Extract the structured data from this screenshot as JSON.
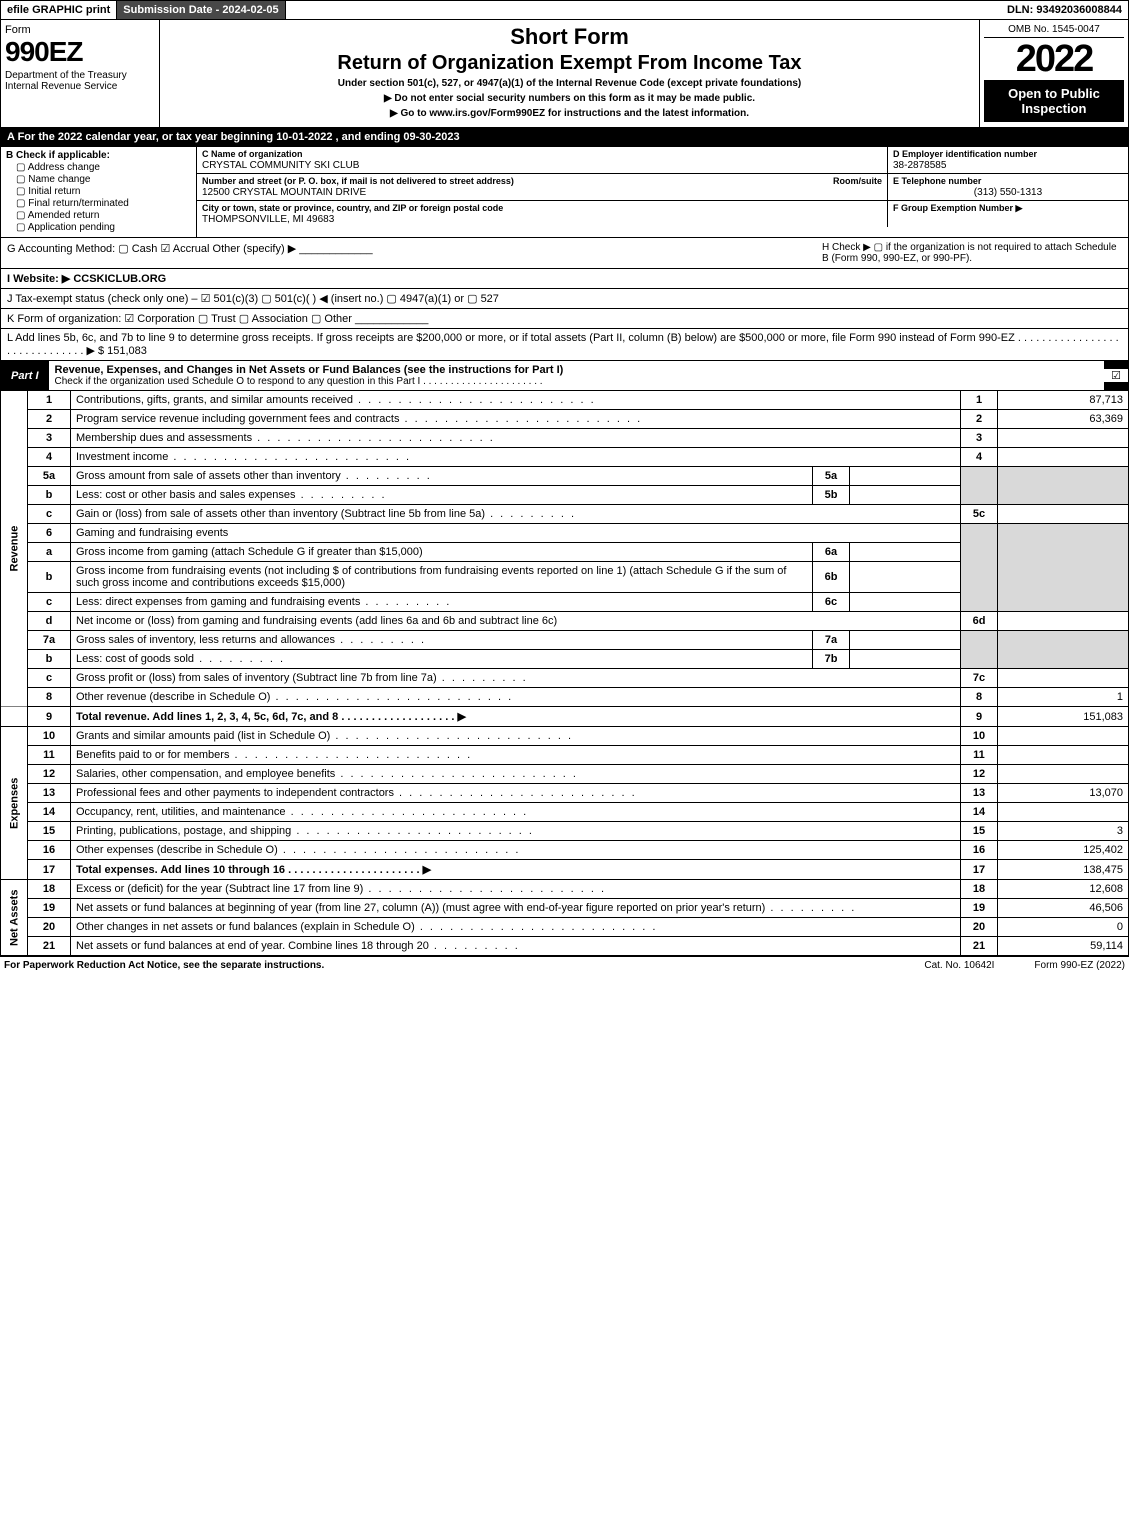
{
  "topbar": {
    "efile": "efile GRAPHIC print",
    "subdate_label": "Submission Date - 2024-02-05",
    "dln": "DLN: 93492036008844"
  },
  "header": {
    "form_label": "Form",
    "form_no": "990EZ",
    "dept": "Department of the Treasury\nInternal Revenue Service",
    "short": "Short Form",
    "title": "Return of Organization Exempt From Income Tax",
    "under": "Under section 501(c), 527, or 4947(a)(1) of the Internal Revenue Code (except private foundations)",
    "nossn": "▶ Do not enter social security numbers on this form as it may be made public.",
    "goto": "▶ Go to www.irs.gov/Form990EZ for instructions and the latest information.",
    "omb": "OMB No. 1545-0047",
    "year": "2022",
    "open": "Open to Public Inspection"
  },
  "secA": "A  For the 2022 calendar year, or tax year beginning 10-01-2022 , and ending 09-30-2023",
  "secB": {
    "hdr": "B  Check if applicable:",
    "opts": [
      "Address change",
      "Name change",
      "Initial return",
      "Final return/terminated",
      "Amended return",
      "Application pending"
    ]
  },
  "secC": {
    "c_lbl": "C Name of organization",
    "c_val": "CRYSTAL COMMUNITY SKI CLUB",
    "addr_lbl": "Number and street (or P. O. box, if mail is not delivered to street address)",
    "room_lbl": "Room/suite",
    "addr_val": "12500 CRYSTAL MOUNTAIN DRIVE",
    "city_lbl": "City or town, state or province, country, and ZIP or foreign postal code",
    "city_val": "THOMPSONVILLE, MI  49683"
  },
  "secD": {
    "lbl": "D Employer identification number",
    "val": "38-2878585"
  },
  "secE": {
    "lbl": "E Telephone number",
    "val": "(313) 550-1313"
  },
  "secF": {
    "lbl": "F Group Exemption Number  ▶"
  },
  "rowG": {
    "g": "G Accounting Method:  ▢ Cash  ☑ Accrual  Other (specify) ▶ ____________",
    "h": "H  Check ▶  ▢ if the organization is not required to attach Schedule B (Form 990, 990-EZ, or 990-PF)."
  },
  "rowI": "I Website: ▶ CCSKICLUB.ORG",
  "rowJ": "J Tax-exempt status (check only one) – ☑ 501(c)(3)  ▢ 501(c)(  ) ◀ (insert no.)  ▢ 4947(a)(1) or  ▢ 527",
  "rowK": "K Form of organization:  ☑ Corporation  ▢ Trust  ▢ Association  ▢ Other  ____________",
  "rowL": "L Add lines 5b, 6c, and 7b to line 9 to determine gross receipts. If gross receipts are $200,000 or more, or if total assets (Part II, column (B) below) are $500,000 or more, file Form 990 instead of Form 990-EZ  . . . . . . . . . . . . . . . . . . . . . . . . . . . . . .  ▶ $ 151,083",
  "part1": {
    "tag": "Part I",
    "title": "Revenue, Expenses, and Changes in Net Assets or Fund Balances (see the instructions for Part I)",
    "sub": "Check if the organization used Schedule O to respond to any question in this Part I . . . . . . . . . . . . . . . . . . . . . .",
    "chk": "☑"
  },
  "sides": {
    "rev": "Revenue",
    "exp": "Expenses",
    "net": "Net Assets"
  },
  "lines": {
    "l1": {
      "n": "1",
      "d": "Contributions, gifts, grants, and similar amounts received",
      "cn": "1",
      "cv": "87,713"
    },
    "l2": {
      "n": "2",
      "d": "Program service revenue including government fees and contracts",
      "cn": "2",
      "cv": "63,369"
    },
    "l3": {
      "n": "3",
      "d": "Membership dues and assessments",
      "cn": "3",
      "cv": ""
    },
    "l4": {
      "n": "4",
      "d": "Investment income",
      "cn": "4",
      "cv": ""
    },
    "l5a": {
      "n": "5a",
      "d": "Gross amount from sale of assets other than inventory",
      "bn": "5a",
      "bv": ""
    },
    "l5b": {
      "n": "b",
      "d": "Less: cost or other basis and sales expenses",
      "bn": "5b",
      "bv": ""
    },
    "l5c": {
      "n": "c",
      "d": "Gain or (loss) from sale of assets other than inventory (Subtract line 5b from line 5a)",
      "cn": "5c",
      "cv": ""
    },
    "l6": {
      "n": "6",
      "d": "Gaming and fundraising events"
    },
    "l6a": {
      "n": "a",
      "d": "Gross income from gaming (attach Schedule G if greater than $15,000)",
      "bn": "6a",
      "bv": ""
    },
    "l6b": {
      "n": "b",
      "d": "Gross income from fundraising events (not including $                      of contributions from fundraising events reported on line 1) (attach Schedule G if the sum of such gross income and contributions exceeds $15,000)",
      "bn": "6b",
      "bv": ""
    },
    "l6c": {
      "n": "c",
      "d": "Less: direct expenses from gaming and fundraising events",
      "bn": "6c",
      "bv": ""
    },
    "l6d": {
      "n": "d",
      "d": "Net income or (loss) from gaming and fundraising events (add lines 6a and 6b and subtract line 6c)",
      "cn": "6d",
      "cv": ""
    },
    "l7a": {
      "n": "7a",
      "d": "Gross sales of inventory, less returns and allowances",
      "bn": "7a",
      "bv": ""
    },
    "l7b": {
      "n": "b",
      "d": "Less: cost of goods sold",
      "bn": "7b",
      "bv": ""
    },
    "l7c": {
      "n": "c",
      "d": "Gross profit or (loss) from sales of inventory (Subtract line 7b from line 7a)",
      "cn": "7c",
      "cv": ""
    },
    "l8": {
      "n": "8",
      "d": "Other revenue (describe in Schedule O)",
      "cn": "8",
      "cv": "1"
    },
    "l9": {
      "n": "9",
      "d": "Total revenue. Add lines 1, 2, 3, 4, 5c, 6d, 7c, and 8  . . . . . . . . . . . . . . . . . . .   ▶",
      "cn": "9",
      "cv": "151,083"
    },
    "l10": {
      "n": "10",
      "d": "Grants and similar amounts paid (list in Schedule O)",
      "cn": "10",
      "cv": ""
    },
    "l11": {
      "n": "11",
      "d": "Benefits paid to or for members",
      "cn": "11",
      "cv": ""
    },
    "l12": {
      "n": "12",
      "d": "Salaries, other compensation, and employee benefits",
      "cn": "12",
      "cv": ""
    },
    "l13": {
      "n": "13",
      "d": "Professional fees and other payments to independent contractors",
      "cn": "13",
      "cv": "13,070"
    },
    "l14": {
      "n": "14",
      "d": "Occupancy, rent, utilities, and maintenance",
      "cn": "14",
      "cv": ""
    },
    "l15": {
      "n": "15",
      "d": "Printing, publications, postage, and shipping",
      "cn": "15",
      "cv": "3"
    },
    "l16": {
      "n": "16",
      "d": "Other expenses (describe in Schedule O)",
      "cn": "16",
      "cv": "125,402"
    },
    "l17": {
      "n": "17",
      "d": "Total expenses. Add lines 10 through 16  . . . . . . . . . . . . . . . . . . . . . .   ▶",
      "cn": "17",
      "cv": "138,475"
    },
    "l18": {
      "n": "18",
      "d": "Excess or (deficit) for the year (Subtract line 17 from line 9)",
      "cn": "18",
      "cv": "12,608"
    },
    "l19": {
      "n": "19",
      "d": "Net assets or fund balances at beginning of year (from line 27, column (A)) (must agree with end-of-year figure reported on prior year's return)",
      "cn": "19",
      "cv": "46,506"
    },
    "l20": {
      "n": "20",
      "d": "Other changes in net assets or fund balances (explain in Schedule O)",
      "cn": "20",
      "cv": "0"
    },
    "l21": {
      "n": "21",
      "d": "Net assets or fund balances at end of year. Combine lines 18 through 20",
      "cn": "21",
      "cv": "59,114"
    }
  },
  "footer": {
    "l": "For Paperwork Reduction Act Notice, see the separate instructions.",
    "m": "Cat. No. 10642I",
    "r": "Form 990-EZ (2022)"
  },
  "style": {
    "black": "#000000",
    "white": "#ffffff",
    "shade": "#d9d9d9",
    "darkbtn": "#484848",
    "link": "#0000cc"
  }
}
